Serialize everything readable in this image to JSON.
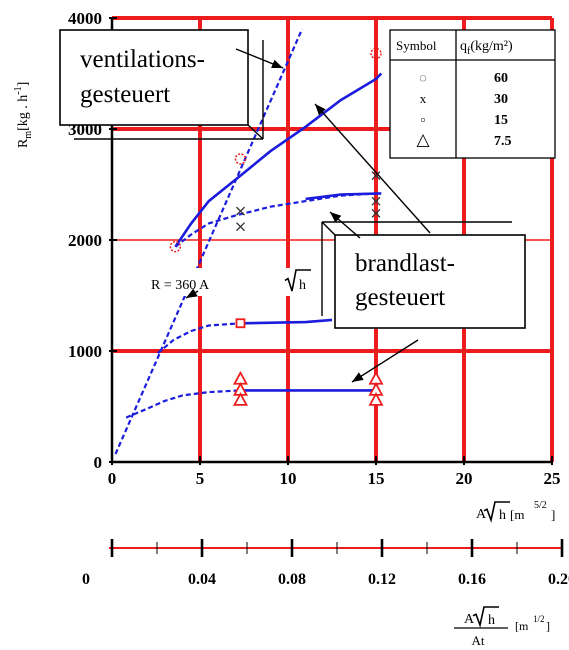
{
  "chart_data": {
    "type": "line",
    "title": "",
    "ylabel": {
      "main": "R",
      "sub": "m",
      "unit": "[kg . h",
      "exp": "-1",
      "close": "]"
    },
    "xlabel": {
      "prefix": "A",
      "root": "h",
      "unit": "[m",
      "exp": "5/2",
      "close": "]"
    },
    "xlim": [
      0,
      25
    ],
    "ylim": [
      0,
      4000
    ],
    "x_ticks": [
      0,
      5,
      10,
      15,
      20,
      25
    ],
    "y_ticks": [
      0,
      1000,
      2000,
      3000,
      4000
    ],
    "y_tick_labels": [
      "0",
      "1000",
      "2000",
      "3000",
      "4000"
    ],
    "x_tick_labels": [
      "0",
      "5",
      "10",
      "15",
      "20",
      "25"
    ],
    "grid": true,
    "grid_color": "#ee1c1c",
    "series_color": "#1c1cdd",
    "marker_color": "#ee1c1c",
    "series": [
      {
        "q": "60",
        "style": "solid",
        "values": [
          [
            3.6,
            1940
          ],
          [
            4.5,
            2150
          ],
          [
            5.5,
            2350
          ],
          [
            7.3,
            2580
          ],
          [
            9,
            2800
          ],
          [
            11,
            3020
          ],
          [
            13,
            3260
          ],
          [
            15,
            3450
          ],
          [
            15.3,
            3500
          ]
        ],
        "markers": [
          [
            3.6,
            1940
          ],
          [
            7.3,
            2730
          ],
          [
            15,
            3680
          ]
        ],
        "marker": "circle"
      },
      {
        "q": "30",
        "style": "dashed",
        "values": [
          [
            3.6,
            1940
          ],
          [
            4.5,
            2050
          ],
          [
            5.5,
            2150
          ],
          [
            7,
            2220
          ],
          [
            9,
            2300
          ],
          [
            11,
            2350
          ],
          [
            13,
            2400
          ],
          [
            15,
            2420
          ]
        ],
        "markers": [
          [
            7.3,
            2260
          ],
          [
            7.3,
            2120
          ],
          [
            15,
            2580
          ],
          [
            15,
            2350
          ],
          [
            15,
            2240
          ]
        ],
        "marker": "x"
      },
      {
        "q": "30",
        "style": "solid",
        "values": [
          [
            11,
            2370
          ],
          [
            13,
            2410
          ],
          [
            15.3,
            2420
          ]
        ]
      },
      {
        "q": "15",
        "style": "dashed",
        "values": [
          [
            2.6,
            980
          ],
          [
            3.5,
            1100
          ],
          [
            4.5,
            1180
          ],
          [
            5.5,
            1230
          ],
          [
            7.3,
            1250
          ]
        ],
        "markers": [
          [
            7.3,
            1250
          ]
        ],
        "marker": "square"
      },
      {
        "q": "15",
        "style": "solid",
        "values": [
          [
            7.3,
            1250
          ],
          [
            11,
            1260
          ],
          [
            12.5,
            1280
          ]
        ]
      },
      {
        "q": "7.5",
        "style": "dashed",
        "values": [
          [
            0.8,
            400
          ],
          [
            2,
            480
          ],
          [
            3,
            550
          ],
          [
            4,
            600
          ],
          [
            5.5,
            630
          ],
          [
            7.3,
            645
          ]
        ],
        "markers": [
          [
            7.3,
            750
          ],
          [
            7.3,
            650
          ],
          [
            7.3,
            560
          ],
          [
            15,
            750
          ],
          [
            15,
            650
          ],
          [
            15,
            560
          ]
        ],
        "marker": "triangle"
      },
      {
        "q": "7.5",
        "style": "solid",
        "values": [
          [
            7.3,
            645
          ],
          [
            15,
            645
          ]
        ]
      },
      {
        "q": "",
        "style": "dashed",
        "label": "R = 360 A",
        "label_root": "h",
        "values": [
          [
            0.2,
            72
          ],
          [
            10.8,
            3900
          ]
        ]
      }
    ],
    "secondary_axis": {
      "ticks": [
        0,
        0.04,
        0.08,
        0.12,
        0.16,
        0.2
      ],
      "tick_labels": [
        "0",
        "0.04",
        "0.08",
        "0.12",
        "0.16",
        "0.20"
      ],
      "label": {
        "num_prefix": "A",
        "num_root": "h",
        "den": "At",
        "unit": "[m",
        "exp": "1/2",
        "close": "]"
      }
    },
    "legend": {
      "placement": "top-right",
      "header_symbol": "Symbol",
      "header_q": "q",
      "header_q_sub": "f",
      "header_q_unit": "(kg/m²)",
      "rows": [
        {
          "symbol": "circle",
          "glyph": "◌",
          "value": "60"
        },
        {
          "symbol": "x",
          "glyph": "x",
          "value": "30"
        },
        {
          "symbol": "square",
          "glyph": "▫",
          "value": "15"
        },
        {
          "symbol": "triangle",
          "glyph": "△",
          "value": "7.5"
        }
      ]
    },
    "annotations": [
      {
        "id": "ventilation",
        "lines": [
          "ventilations-",
          "gesteuert"
        ]
      },
      {
        "id": "fuel",
        "lines": [
          "brandlast-",
          "gesteuert"
        ]
      }
    ]
  }
}
